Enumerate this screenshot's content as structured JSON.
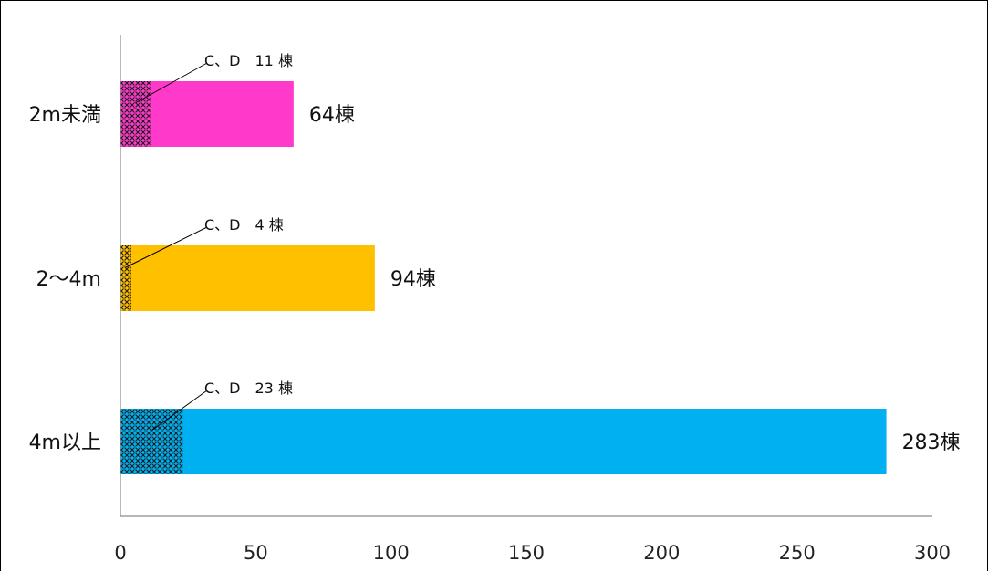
{
  "chart_data": {
    "type": "bar",
    "orientation": "horizontal",
    "stacked": true,
    "title": "",
    "xlabel": "",
    "ylabel": "",
    "xlim": [
      0,
      300
    ],
    "x_ticks": [
      "0",
      "50",
      "100",
      "150",
      "200",
      "250",
      "300"
    ],
    "grid": false,
    "legend": "none",
    "categories": [
      "2m未満",
      "2〜4m",
      "4m以上"
    ],
    "values": [
      64,
      94,
      283
    ],
    "value_labels": [
      "64棟",
      "94棟",
      "283棟"
    ],
    "cd_values": [
      11,
      4,
      23
    ],
    "cd_labels": [
      "C、D　11 棟",
      "C、D　4 棟",
      "C、D　23 棟"
    ],
    "colors": [
      "#FF3ACB",
      "#FFC000",
      "#00B0F0"
    ]
  }
}
